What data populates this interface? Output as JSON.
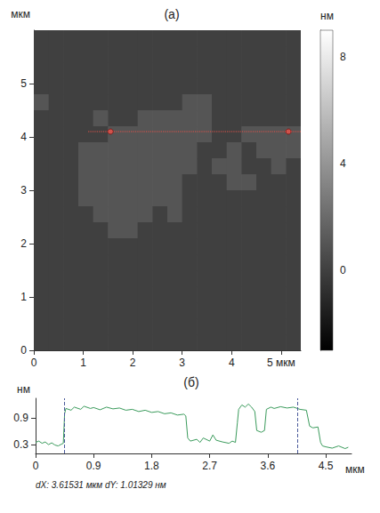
{
  "chart_data": [
    {
      "type": "heatmap",
      "title": "(а)",
      "ylabel": "мкм",
      "xlim": [
        0,
        5.4
      ],
      "ylim": [
        0,
        6
      ],
      "xticks": [
        0,
        1,
        2,
        3,
        4,
        {
          "value": 5,
          "label": "5 мкм"
        }
      ],
      "yticks": [
        0,
        1,
        2,
        3,
        4,
        5
      ],
      "cells": [
        [
          0,
          0,
          0,
          0,
          0,
          0,
          0,
          0,
          0,
          0,
          0,
          0,
          0,
          0,
          0,
          0,
          0,
          0
        ],
        [
          0,
          0,
          0,
          0,
          0,
          0,
          0,
          0,
          0,
          0,
          0,
          0,
          0,
          0,
          0,
          0,
          0,
          0
        ],
        [
          0,
          0,
          0,
          0,
          0,
          0,
          0,
          0,
          0,
          0,
          0,
          0,
          0,
          0,
          0,
          0,
          0,
          0
        ],
        [
          0,
          0,
          0,
          0,
          0,
          0,
          0,
          0,
          0,
          0,
          0,
          0,
          0,
          0,
          0,
          0,
          0,
          0
        ],
        [
          1,
          0,
          0,
          0,
          0,
          0,
          0,
          0,
          0,
          0,
          1,
          1,
          0,
          0,
          0,
          0,
          0,
          0
        ],
        [
          0,
          0,
          0,
          0,
          1,
          0,
          0,
          1,
          1,
          1,
          1,
          1,
          0,
          0,
          0,
          0,
          0,
          0
        ],
        [
          0,
          0,
          0,
          0,
          0,
          1,
          1,
          1,
          1,
          1,
          1,
          1,
          0,
          0,
          1,
          1,
          1,
          1
        ],
        [
          0,
          0,
          0,
          1,
          1,
          1,
          1,
          1,
          1,
          1,
          1,
          0,
          0,
          1,
          0,
          1,
          1,
          1
        ],
        [
          0,
          0,
          0,
          1,
          1,
          1,
          1,
          1,
          1,
          1,
          1,
          0,
          1,
          1,
          0,
          0,
          1,
          0
        ],
        [
          0,
          0,
          0,
          1,
          1,
          1,
          1,
          1,
          1,
          1,
          0,
          0,
          0,
          1,
          1,
          0,
          0,
          0
        ],
        [
          0,
          0,
          0,
          1,
          1,
          1,
          1,
          1,
          1,
          1,
          0,
          0,
          0,
          0,
          0,
          0,
          0,
          0
        ],
        [
          0,
          0,
          0,
          0,
          1,
          1,
          1,
          1,
          0,
          1,
          0,
          0,
          0,
          0,
          0,
          0,
          0,
          0
        ],
        [
          0,
          0,
          0,
          0,
          0,
          1,
          1,
          0,
          0,
          0,
          0,
          0,
          0,
          0,
          0,
          0,
          0,
          0
        ],
        [
          0,
          0,
          0,
          0,
          0,
          0,
          0,
          0,
          0,
          0,
          0,
          0,
          0,
          0,
          0,
          0,
          0,
          0
        ],
        [
          0,
          0,
          0,
          0,
          0,
          0,
          0,
          0,
          0,
          0,
          0,
          0,
          0,
          0,
          0,
          0,
          0,
          0
        ],
        [
          0,
          0,
          0,
          0,
          0,
          0,
          0,
          0,
          0,
          0,
          0,
          0,
          0,
          0,
          0,
          0,
          0,
          0
        ],
        [
          0,
          0,
          0,
          0,
          0,
          0,
          0,
          0,
          0,
          0,
          0,
          0,
          0,
          0,
          0,
          0,
          0,
          0
        ],
        [
          0,
          0,
          0,
          0,
          0,
          0,
          0,
          0,
          0,
          0,
          0,
          0,
          0,
          0,
          0,
          0,
          0,
          0
        ],
        [
          0,
          0,
          0,
          0,
          0,
          0,
          0,
          0,
          0,
          0,
          0,
          0,
          0,
          0,
          0,
          0,
          0,
          0
        ],
        [
          0,
          0,
          0,
          0,
          0,
          0,
          0,
          0,
          0,
          0,
          0,
          0,
          0,
          0,
          0,
          0,
          0,
          0
        ]
      ],
      "colorbar": {
        "label": "нм",
        "range": [
          -3,
          9
        ],
        "ticks": [
          0,
          4,
          8
        ]
      },
      "profile": {
        "x": [
          1.1,
          5.4
        ],
        "y": 4.1,
        "markers": [
          1.55,
          5.15
        ],
        "color": "#e8534a"
      }
    },
    {
      "type": "line",
      "title": "(б)",
      "xlabel": "мкм",
      "ylabel": "нм",
      "caption": "dX: 3.61531 мкм dY: 1.01329 нм",
      "color": "#3b9b5c",
      "x": [
        0,
        0.05,
        0.1,
        0.15,
        0.2,
        0.25,
        0.3,
        0.35,
        0.4,
        0.43,
        0.45,
        0.47,
        0.55,
        0.6,
        0.7,
        0.75,
        0.85,
        0.9,
        1.0,
        1.1,
        1.2,
        1.3,
        1.4,
        1.5,
        1.6,
        1.7,
        1.8,
        1.9,
        2.0,
        2.1,
        2.2,
        2.3,
        2.33,
        2.36,
        2.4,
        2.5,
        2.55,
        2.6,
        2.7,
        2.75,
        2.8,
        2.9,
        3.0,
        3.05,
        3.1,
        3.13,
        3.15,
        3.2,
        3.25,
        3.3,
        3.35,
        3.4,
        3.43,
        3.5,
        3.55,
        3.58,
        3.65,
        3.7,
        3.8,
        3.9,
        4.0,
        4.1,
        4.2,
        4.25,
        4.3,
        4.38,
        4.42,
        4.45,
        4.5,
        4.6,
        4.7,
        4.8,
        4.85
      ],
      "values": [
        0.35,
        0.38,
        0.33,
        0.36,
        0.3,
        0.34,
        0.29,
        0.27,
        0.31,
        0.33,
        1.0,
        1.12,
        1.08,
        1.15,
        1.1,
        1.17,
        1.12,
        1.14,
        1.09,
        1.15,
        1.11,
        1.13,
        1.08,
        1.1,
        1.05,
        1.08,
        1.03,
        1.05,
        1.0,
        1.02,
        0.97,
        0.99,
        0.95,
        0.45,
        0.38,
        0.42,
        0.35,
        0.45,
        0.38,
        0.52,
        0.4,
        0.36,
        0.33,
        0.38,
        0.35,
        0.8,
        1.1,
        1.2,
        1.15,
        1.22,
        1.15,
        1.05,
        0.62,
        0.58,
        0.62,
        1.1,
        1.15,
        1.12,
        1.16,
        1.13,
        1.15,
        1.1,
        1.08,
        0.72,
        0.68,
        0.7,
        0.35,
        0.27,
        0.25,
        0.22,
        0.27,
        0.21,
        0.24
      ],
      "xlim": [
        0,
        4.9
      ],
      "ylim": [
        0.1,
        1.35
      ],
      "xticks": [
        0,
        0.9,
        1.8,
        2.7,
        3.6,
        4.5
      ],
      "yticks": [
        0.3,
        0.9
      ],
      "cursors": [
        0.45,
        4.06
      ]
    }
  ]
}
